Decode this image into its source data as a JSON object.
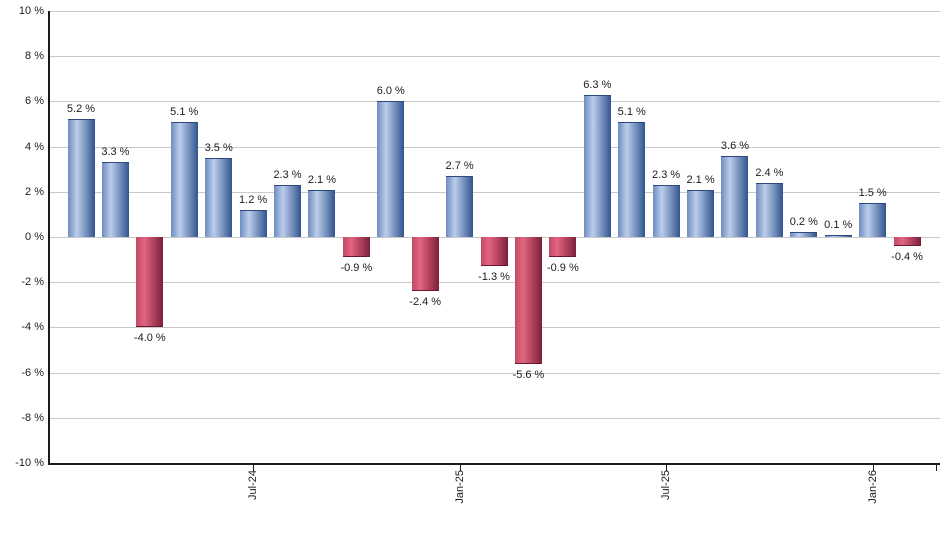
{
  "chart_data": {
    "type": "bar",
    "title": "",
    "xlabel": "",
    "ylabel": "",
    "ylim": [
      -10,
      10
    ],
    "grid": true,
    "values": [
      5.2,
      3.3,
      -4.0,
      5.1,
      3.5,
      1.2,
      2.3,
      2.1,
      -0.9,
      6.0,
      -2.4,
      2.7,
      -1.3,
      -5.6,
      -0.9,
      6.3,
      5.1,
      2.3,
      2.1,
      3.6,
      2.4,
      0.2,
      0.1,
      1.5,
      -0.4
    ],
    "bar_labels": [
      "5.2 %",
      "3.3 %",
      "-4.0 %",
      "5.1 %",
      "3.5 %",
      "1.2 %",
      "2.3 %",
      "2.1 %",
      "-0.9 %",
      "6.0 %",
      "-2.4 %",
      "2.7 %",
      "-1.3 %",
      "-5.6 %",
      "-0.9 %",
      "6.3 %",
      "5.1 %",
      "2.3 %",
      "2.1 %",
      "3.6 %",
      "2.4 %",
      "0.2 %",
      "0.1 %",
      "1.5 %",
      "-0.4 %"
    ],
    "y_tick_values": [
      10,
      8,
      6,
      4,
      2,
      0,
      -2,
      -4,
      -6,
      -8,
      -10
    ],
    "y_tick_labels": [
      "10 %",
      "8 %",
      "6 %",
      "4 %",
      "2 %",
      "0 %",
      "-2 %",
      "-4 %",
      "-6 %",
      "-8 %",
      "-10 %"
    ],
    "x_tick_labels": [
      {
        "label": "Jul-24",
        "bar_index": 5
      },
      {
        "label": "Jan-25",
        "bar_index": 11
      },
      {
        "label": "Jul-25",
        "bar_index": 17
      },
      {
        "label": "Jan-26",
        "bar_index": 23
      }
    ],
    "legend": "none",
    "colors": {
      "positive_edge": "#6e8cc0",
      "positive_light": "#bccdec",
      "positive_dark": "#30548e",
      "positive_cap": "#2a4a7f",
      "negative_edge": "#c14a66",
      "negative_light": "#e26580",
      "negative_dark": "#7d1f3b",
      "negative_cap": "#6d1830",
      "gridline": "#c9c9c9",
      "axis": "#1a1a1a",
      "label_text": "#1c1c1c"
    }
  }
}
